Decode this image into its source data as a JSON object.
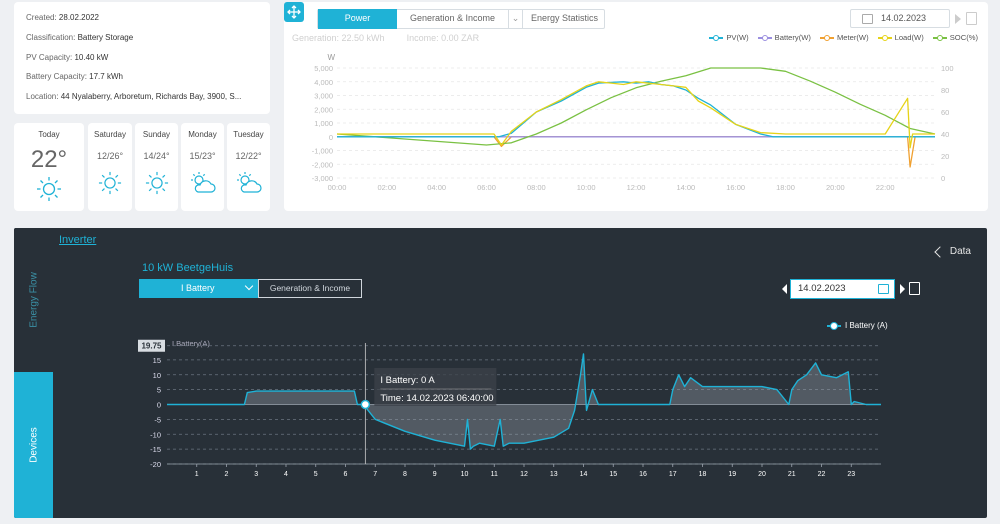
{
  "plant": {
    "rows": [
      {
        "label": "Created",
        "value": "28.02.2022"
      },
      {
        "label": "Classification",
        "value": "Battery Storage"
      },
      {
        "label": "PV Capacity",
        "value": "10.40 kW"
      },
      {
        "label": "Battery Capacity",
        "value": "17.7 kWh"
      },
      {
        "label": "Location",
        "value": "44 Nyalaberry, Arboretum, Richards Bay, 3900, S..."
      }
    ]
  },
  "weather": [
    {
      "day": "Today",
      "temp": "22°",
      "icon": "sun-icon"
    },
    {
      "day": "Saturday",
      "temp": "12/26°",
      "icon": "sun-icon"
    },
    {
      "day": "Sunday",
      "temp": "14/24°",
      "icon": "sun-icon"
    },
    {
      "day": "Monday",
      "temp": "15/23°",
      "icon": "partly-cloudy-icon"
    },
    {
      "day": "Tuesday",
      "temp": "12/22°",
      "icon": "partly-cloudy-icon"
    }
  ],
  "power_panel": {
    "tabs": {
      "power": "Power",
      "generation": "Generation & Income",
      "energy": "Energy Statistics"
    },
    "date": "14.02.2023",
    "generation": "Generation: 22.50 kWh",
    "income": "Income: 0.00 ZAR",
    "legend": [
      {
        "name": "PV(W)",
        "color": "#1fb2d6"
      },
      {
        "name": "Battery(W)",
        "color": "#9b8fe0"
      },
      {
        "name": "Meter(W)",
        "color": "#f0a030"
      },
      {
        "name": "Load(W)",
        "color": "#e6d318"
      },
      {
        "name": "SOC(%)",
        "color": "#7ac143"
      }
    ]
  },
  "device_panel": {
    "inverter_link": "Inverter",
    "data_link": "Data",
    "side_energy_flow": "Energy Flow",
    "side_devices": "Devices",
    "device_name": "10 kW BeetgeHuis",
    "selector": "I Battery",
    "tab_generation": "Generation & Income",
    "date": "14.02.2023",
    "legend": "I Battery (A)",
    "tooltip": {
      "line1": "I Battery: 0 A",
      "line2": "Time: 14.02.2023 06:40:00"
    }
  },
  "chart_data": [
    {
      "type": "line",
      "x_ticks": [
        "00:00",
        "02:00",
        "04:00",
        "06:00",
        "08:00",
        "10:00",
        "12:00",
        "14:00",
        "16:00",
        "18:00",
        "20:00",
        "22:00"
      ],
      "ylabel": "W",
      "ylim": [
        -3000,
        5000
      ],
      "y_ticks": [
        "5,000",
        "4,000",
        "3,000",
        "2,000",
        "1,000",
        "0",
        "-1,000",
        "-2,000",
        "-3,000"
      ],
      "y2lim": [
        0,
        100
      ],
      "y2_ticks": [
        "100",
        "80",
        "60",
        "40",
        "20",
        "0"
      ],
      "grid": true,
      "legend_position": "top-right",
      "series": [
        {
          "name": "PV(W)",
          "x": [
            0,
            6,
            6.5,
            7,
            8,
            9,
            10,
            10.5,
            11,
            11.5,
            12,
            12.5,
            13,
            13.5,
            14,
            14.5,
            15,
            16,
            17,
            17.5,
            18,
            24
          ],
          "y": [
            0,
            0,
            0,
            250,
            1800,
            2600,
            3600,
            3900,
            3950,
            4000,
            3900,
            4000,
            3800,
            3700,
            3400,
            2800,
            2300,
            900,
            200,
            0,
            0,
            0
          ]
        },
        {
          "name": "Load(W)",
          "x": [
            0,
            6.3,
            6.6,
            7,
            8,
            9,
            10,
            10.5,
            11,
            11.5,
            12,
            12.5,
            13,
            13.5,
            14,
            14.5,
            15,
            16,
            17,
            18,
            20,
            22,
            22.9,
            23,
            23.1,
            24
          ],
          "y": [
            200,
            200,
            -600,
            400,
            1800,
            2700,
            3700,
            4000,
            3900,
            3800,
            4000,
            3900,
            3800,
            3700,
            3600,
            2600,
            2100,
            900,
            300,
            200,
            200,
            200,
            2800,
            -800,
            200,
            200
          ]
        },
        {
          "name": "Meter(W)",
          "x": [
            0,
            6.3,
            6.6,
            7,
            8,
            10,
            12,
            14,
            16,
            18,
            20,
            22.9,
            23,
            23.2,
            24
          ],
          "y": [
            0,
            0,
            -700,
            0,
            0,
            0,
            0,
            0,
            0,
            0,
            0,
            0,
            -2200,
            0,
            0
          ]
        },
        {
          "name": "Battery(W)",
          "x": [
            0,
            24
          ],
          "y": [
            0,
            0
          ]
        },
        {
          "name": "SOC(%)",
          "x": [
            0,
            6,
            7,
            8,
            9,
            10,
            11,
            12,
            13,
            14,
            15,
            16,
            17,
            18,
            19,
            20,
            21,
            22,
            23,
            24
          ],
          "y": [
            40,
            30,
            32,
            40,
            50,
            62,
            73,
            82,
            88,
            93,
            100,
            100,
            100,
            97,
            88,
            78,
            67,
            57,
            45,
            40
          ]
        }
      ]
    },
    {
      "type": "line",
      "ylabel": "I Battery(A)",
      "ylim": [
        -20,
        19.75
      ],
      "y_ticks": [
        "15",
        "10",
        "5",
        "0",
        "-5",
        "-10",
        "-15",
        "-20"
      ],
      "y_max_label": "19.75",
      "x_ticks": [
        "1",
        "2",
        "3",
        "4",
        "5",
        "6",
        "7",
        "8",
        "9",
        "10",
        "11",
        "12",
        "13",
        "14",
        "15",
        "16",
        "17",
        "18",
        "19",
        "20",
        "21",
        "22",
        "23"
      ],
      "grid": true,
      "legend_position": "top-right",
      "series": [
        {
          "name": "I Battery (A)",
          "x": [
            0,
            1,
            2,
            2.6,
            2.7,
            3,
            4,
            5,
            6,
            6.3,
            6.4,
            6.6,
            7,
            8,
            9,
            10,
            10.1,
            10.2,
            10.3,
            10.5,
            11,
            11.2,
            11.3,
            11.5,
            12,
            12.5,
            13,
            13.5,
            13.7,
            13.9,
            14,
            14.1,
            14.3,
            14.5,
            15,
            16,
            16.9,
            17,
            17.2,
            17.4,
            17.6,
            18,
            19,
            20,
            20.5,
            20.9,
            21,
            21.2,
            21.5,
            21.8,
            22,
            22.5,
            22.9,
            23,
            23.1,
            23.5,
            24
          ],
          "y": [
            0,
            0,
            0,
            0,
            4,
            4.5,
            4.5,
            4.5,
            4.5,
            4.5,
            0,
            0,
            -5,
            -9,
            -12,
            -14,
            -5,
            -15,
            -14,
            -13,
            -14,
            -5,
            -14,
            -13,
            -13,
            -12,
            -11,
            -8,
            -2,
            10,
            17,
            -2,
            5,
            0,
            0,
            0,
            0,
            5,
            10,
            6,
            9,
            6,
            6,
            6,
            5,
            0,
            5,
            8,
            10,
            14,
            10,
            9,
            11,
            0,
            1,
            0,
            0
          ]
        }
      ]
    }
  ]
}
